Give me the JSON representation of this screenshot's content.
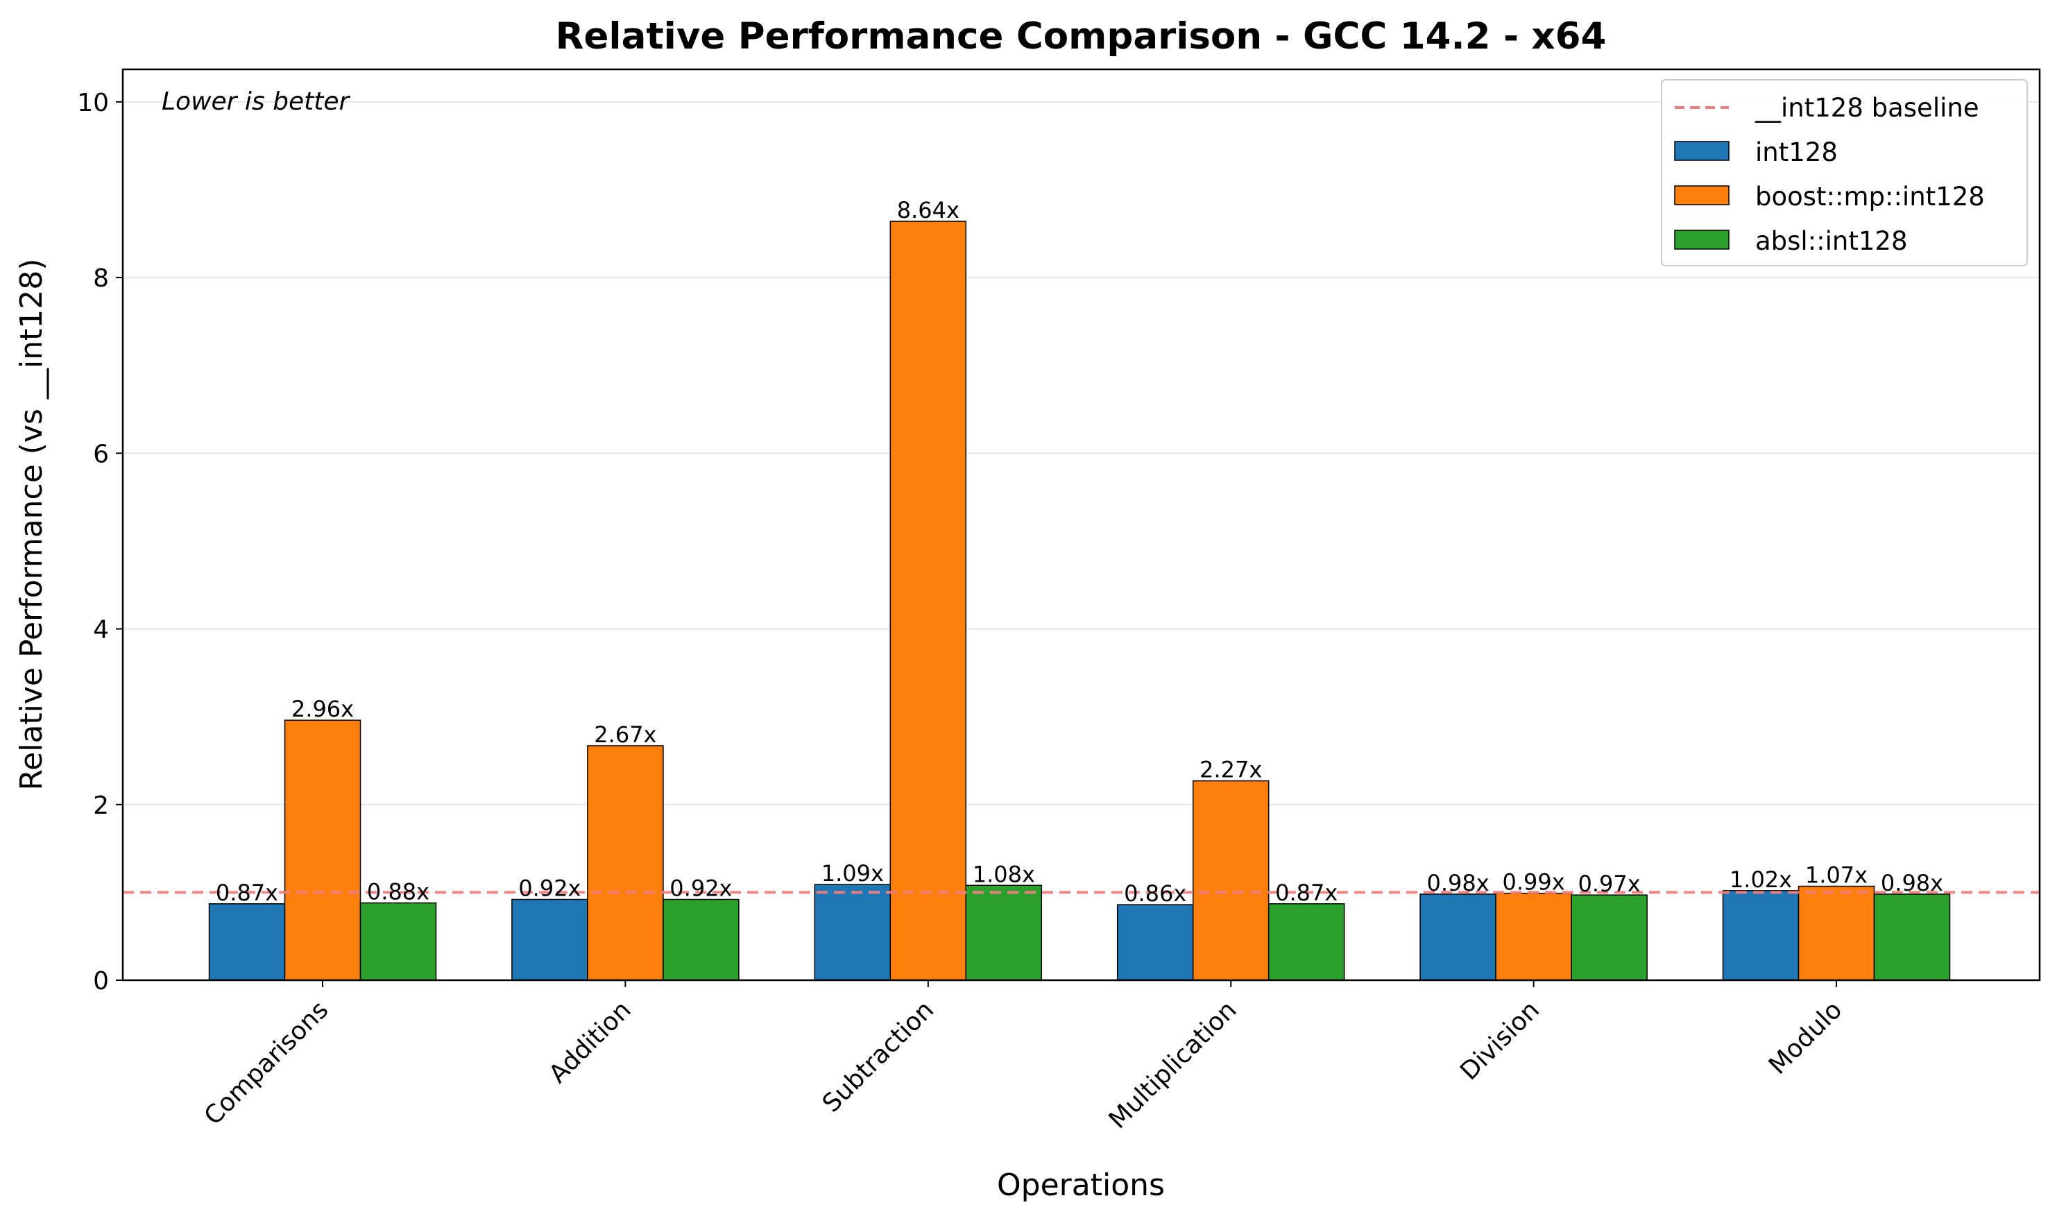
{
  "chart_data": {
    "type": "bar",
    "title": "Relative Performance Comparison - GCC 14.2 - x64",
    "xlabel": "Operations",
    "ylabel": "Relative Performance (vs __int128)",
    "annotation": "Lower is better",
    "categories": [
      "Comparisons",
      "Addition",
      "Subtraction",
      "Multiplication",
      "Division",
      "Modulo"
    ],
    "series": [
      {
        "name": "int128",
        "color": "#1f77b4",
        "values": [
          0.87,
          0.92,
          1.09,
          0.86,
          0.98,
          1.02
        ]
      },
      {
        "name": "boost::mp::int128",
        "color": "#ff7f0e",
        "values": [
          2.96,
          2.67,
          8.64,
          2.27,
          0.99,
          1.07
        ]
      },
      {
        "name": "absl::int128",
        "color": "#2ca02c",
        "values": [
          0.88,
          0.92,
          1.08,
          0.87,
          0.97,
          0.98
        ]
      }
    ],
    "baseline": {
      "name": "__int128 baseline",
      "value": 1.0,
      "color": "#f08080",
      "style": "dashed"
    },
    "ylim": [
      0,
      10.37
    ],
    "yticks": [
      0,
      2,
      4,
      6,
      8,
      10
    ],
    "value_label_suffix": "x",
    "grid": "horizontal",
    "legend_position": "top-right"
  }
}
